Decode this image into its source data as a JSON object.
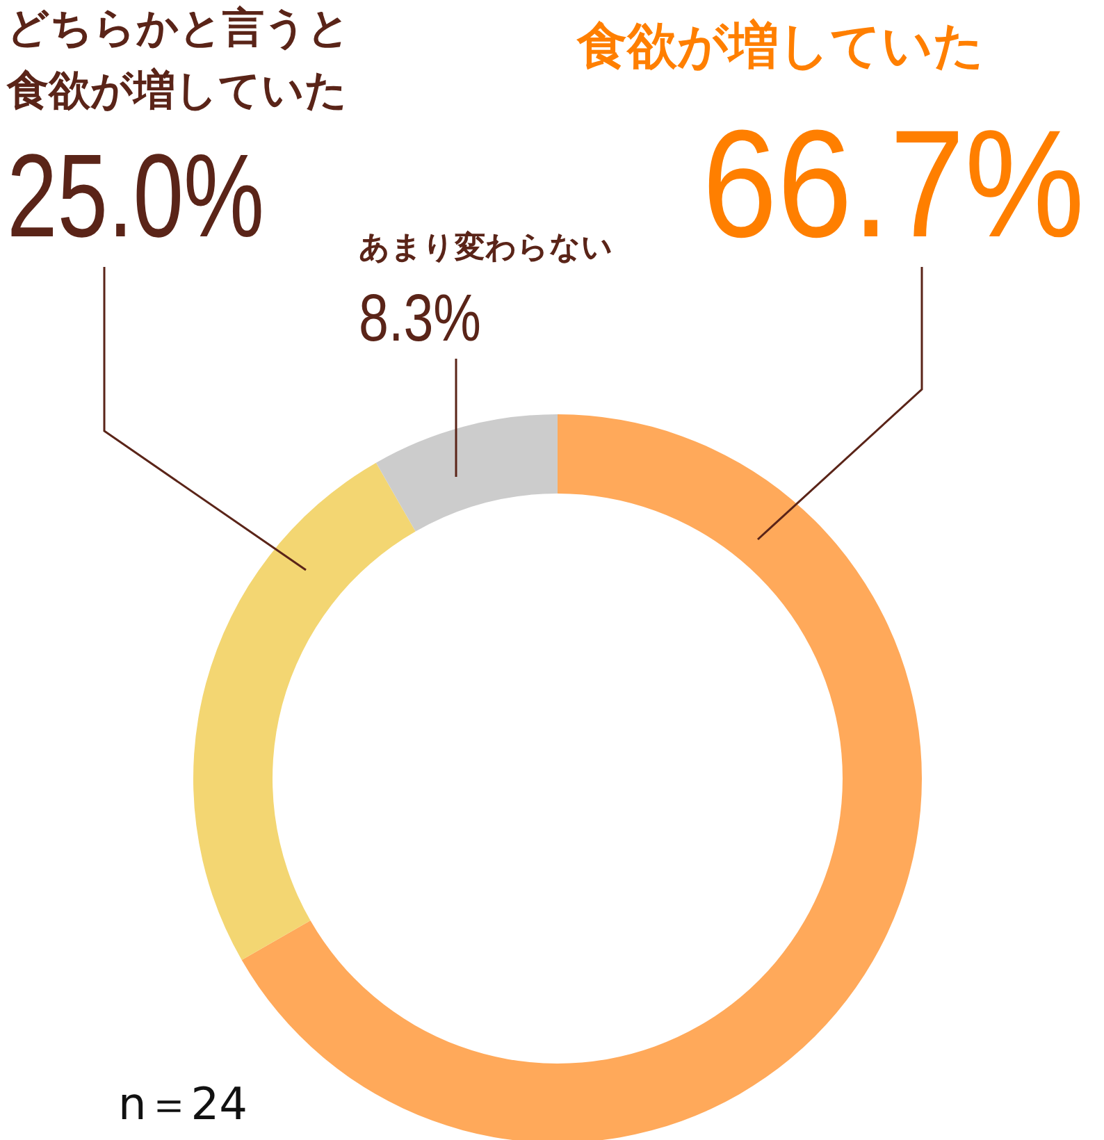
{
  "chart_data": {
    "type": "donut",
    "categories": [
      "食欲が増していた",
      "どちらかと言うと食欲が増していた",
      "あまり変わらない"
    ],
    "values": [
      66.7,
      25.0,
      8.3
    ],
    "colors": [
      "#ffa95a",
      "#f3d672",
      "#cccccc"
    ],
    "value_labels": [
      "66.7%",
      "25.0%",
      "8.3%"
    ],
    "annotations": [
      "n＝24"
    ]
  }
}
